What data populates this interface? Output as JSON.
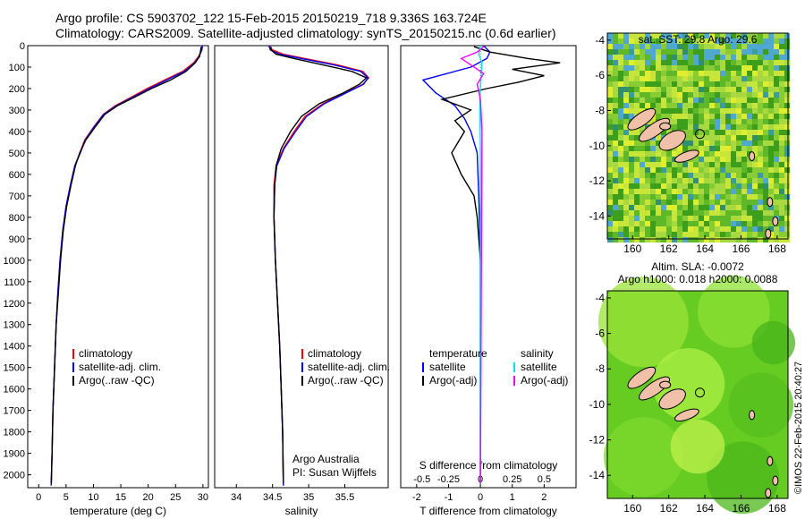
{
  "header": {
    "line1": "Argo profile: CS 5903702_122 15-Feb-2015 20150219_718 9.336S 163.724E",
    "line2": "Climatology: CARS2009. Satellite-adjusted climatology: synTS_20150215.nc (0.6d earlier)"
  },
  "colors": {
    "climatology": "#ff0000",
    "satellite": "#0000ff",
    "argo": "#000000",
    "salinity_satellite": "#00e5ee",
    "salinity_argo": "#ff00ff"
  },
  "credit": {
    "org": "Argo Australia",
    "pi": "PI: Susan Wijffels"
  },
  "stamp": "©IMOS 22-Feb-2015 20:40:27",
  "chart_data": [
    {
      "type": "line",
      "name": "temperature-profile",
      "xlabel": "temperature (deg C)",
      "xlim": [
        -2,
        31
      ],
      "xticks": [
        0,
        5,
        10,
        15,
        20,
        25,
        30
      ],
      "ylim": [
        2060,
        0
      ],
      "yticks": [
        0,
        100,
        200,
        300,
        400,
        500,
        600,
        700,
        800,
        900,
        1000,
        1100,
        1200,
        1300,
        1400,
        1500,
        1600,
        1700,
        1800,
        1900,
        2000
      ],
      "legend": [
        "climatology",
        "satellite-adj. clim.",
        "Argo(..raw -QC)"
      ],
      "series": [
        {
          "name": "climatology",
          "x": [
            29.9,
            29.8,
            29.2,
            28.3,
            26.3,
            23.0,
            19.8,
            16.9,
            14.0,
            11.8,
            10.0,
            8.4,
            7.5,
            6.6,
            5.8,
            5.0,
            4.4,
            3.9,
            3.5,
            3.2,
            2.9,
            2.6,
            2.45,
            2.3
          ],
          "y": [
            0,
            20,
            50,
            80,
            120,
            160,
            200,
            240,
            280,
            320,
            380,
            440,
            500,
            560,
            650,
            750,
            860,
            1000,
            1150,
            1300,
            1500,
            1700,
            1900,
            2050
          ]
        },
        {
          "name": "satellite-adj. clim.",
          "x": [
            29.9,
            29.8,
            29.3,
            28.5,
            26.6,
            23.4,
            20.2,
            17.2,
            14.2,
            11.9,
            10.1,
            8.5,
            7.6,
            6.6,
            5.8,
            5.0,
            4.4,
            3.9,
            3.5,
            3.2,
            2.9,
            2.6,
            2.45,
            2.3
          ],
          "y": [
            0,
            20,
            50,
            80,
            120,
            160,
            200,
            240,
            280,
            320,
            380,
            440,
            500,
            560,
            650,
            750,
            860,
            1000,
            1150,
            1300,
            1500,
            1700,
            1900,
            2050
          ]
        },
        {
          "name": "Argo(..raw -QC)",
          "x": [
            29.7,
            29.6,
            29.4,
            28.6,
            26.9,
            24.1,
            20.6,
            17.5,
            14.4,
            12.1,
            10.3,
            8.6,
            7.5,
            6.7,
            5.9,
            5.1,
            4.5,
            4.0,
            3.6,
            3.2,
            2.9,
            2.6,
            2.45,
            2.3
          ],
          "y": [
            5,
            20,
            50,
            80,
            120,
            160,
            200,
            240,
            280,
            320,
            380,
            440,
            500,
            560,
            650,
            750,
            860,
            1000,
            1150,
            1300,
            1500,
            1700,
            1900,
            2040
          ]
        }
      ]
    },
    {
      "type": "line",
      "name": "salinity-profile",
      "xlabel": "salinity",
      "xlim": [
        33.7,
        36.1
      ],
      "xticks": [
        34,
        34.5,
        35,
        35.5
      ],
      "ylim": [
        2060,
        0
      ],
      "legend": [
        "climatology",
        "satellite-adj. clim.",
        "Argo(..raw -QC)"
      ],
      "series": [
        {
          "name": "climatology",
          "x": [
            34.45,
            34.5,
            34.65,
            34.95,
            35.4,
            35.75,
            35.83,
            35.75,
            35.5,
            35.2,
            34.95,
            34.8,
            34.65,
            34.55,
            34.52,
            34.52,
            34.54,
            34.57,
            34.6,
            34.62,
            34.64,
            34.65
          ],
          "y": [
            0,
            20,
            40,
            60,
            90,
            120,
            150,
            180,
            220,
            270,
            330,
            400,
            480,
            560,
            650,
            800,
            1000,
            1200,
            1400,
            1600,
            1800,
            2050
          ]
        },
        {
          "name": "satellite-adj. clim.",
          "x": [
            34.45,
            34.47,
            34.6,
            34.9,
            35.35,
            35.72,
            35.82,
            35.76,
            35.52,
            35.22,
            34.97,
            34.82,
            34.66,
            34.56,
            34.53,
            34.52,
            34.54,
            34.57,
            34.6,
            34.62,
            34.64,
            34.65
          ],
          "y": [
            0,
            20,
            40,
            60,
            90,
            120,
            150,
            180,
            220,
            270,
            330,
            400,
            480,
            560,
            650,
            800,
            1000,
            1200,
            1400,
            1600,
            1800,
            2050
          ]
        },
        {
          "name": "Argo(..raw -QC)",
          "x": [
            34.48,
            34.48,
            34.55,
            34.8,
            35.2,
            35.6,
            35.8,
            35.7,
            35.48,
            35.15,
            34.9,
            34.75,
            34.62,
            34.55,
            34.53,
            34.52,
            34.54,
            34.57,
            34.6,
            34.62,
            34.64,
            34.65
          ],
          "y": [
            5,
            20,
            40,
            60,
            90,
            120,
            150,
            180,
            220,
            270,
            330,
            400,
            480,
            560,
            650,
            800,
            1000,
            1200,
            1400,
            1600,
            1800,
            2040
          ]
        }
      ]
    },
    {
      "type": "line",
      "name": "difference-profile",
      "xlabel": "T difference from climatology",
      "xlabel_top": "S difference from climatology",
      "xlim": [
        -2.5,
        3
      ],
      "xticks": [
        -2,
        -1,
        0,
        1,
        2
      ],
      "xticks_top": [
        -0.5,
        -0.25,
        0,
        0.25,
        0.5
      ],
      "ylim": [
        2060,
        0
      ],
      "legend_left": [
        "temperature",
        "satellite",
        "Argo(-adj)"
      ],
      "legend_right": [
        "salinity",
        "satellite",
        "Argo(-adj)"
      ],
      "series": [
        {
          "name": "temperature satellite",
          "x": [
            0.1,
            0.3,
            0.2,
            -0.3,
            -1.8,
            -1.4,
            -0.8,
            -0.5,
            -0.3,
            -0.1,
            -0.05,
            0,
            0
          ],
          "y": [
            0,
            30,
            60,
            100,
            160,
            220,
            280,
            340,
            400,
            500,
            700,
            1000,
            2040
          ]
        },
        {
          "name": "temperature Argo(-adj)",
          "x": [
            -0.2,
            0.3,
            1.5,
            2.5,
            1.0,
            2.0,
            1.2,
            0.2,
            -1.2,
            -0.3,
            -0.8,
            -0.5,
            -0.9,
            -0.6,
            -0.2,
            -0.1,
            0,
            0
          ],
          "y": [
            5,
            30,
            60,
            80,
            110,
            140,
            170,
            200,
            250,
            300,
            350,
            400,
            500,
            600,
            700,
            800,
            1000,
            2040
          ]
        },
        {
          "name": "salinity satellite",
          "x": [
            0,
            -0.05,
            0.05,
            0.02,
            -0.02,
            0,
            0
          ],
          "y": [
            0,
            40,
            80,
            150,
            250,
            500,
            2040
          ]
        },
        {
          "name": "salinity Argo(-adj)",
          "x": [
            0.1,
            -0.1,
            -0.6,
            -0.3,
            0.1,
            -0.1,
            0,
            0.05,
            0
          ],
          "y": [
            5,
            30,
            60,
            90,
            130,
            180,
            250,
            400,
            2040
          ]
        }
      ]
    },
    {
      "type": "heatmap",
      "name": "sst-map",
      "title": "sat. SST: 29.8 Argo: 29.6",
      "xlim": [
        158.6,
        168.6
      ],
      "ylim": [
        -15.3,
        -3.6
      ],
      "xticks": [
        160,
        162,
        164,
        166,
        168
      ],
      "yticks": [
        -4,
        -6,
        -8,
        -10,
        -12,
        -14
      ],
      "argo_position": {
        "lon": 163.724,
        "lat": -9.336
      }
    },
    {
      "type": "heatmap",
      "name": "sla-map",
      "title": "Altim. SLA: -0.0072",
      "subtitle": "Argo h1000: 0.018 h2000: 0.0088",
      "xlim": [
        158.6,
        168.6
      ],
      "ylim": [
        -15.3,
        -3.6
      ],
      "xticks": [
        160,
        162,
        164,
        166,
        168
      ],
      "yticks": [
        -4,
        -6,
        -8,
        -10,
        -12,
        -14
      ],
      "argo_position": {
        "lon": 163.724,
        "lat": -9.336
      }
    }
  ]
}
